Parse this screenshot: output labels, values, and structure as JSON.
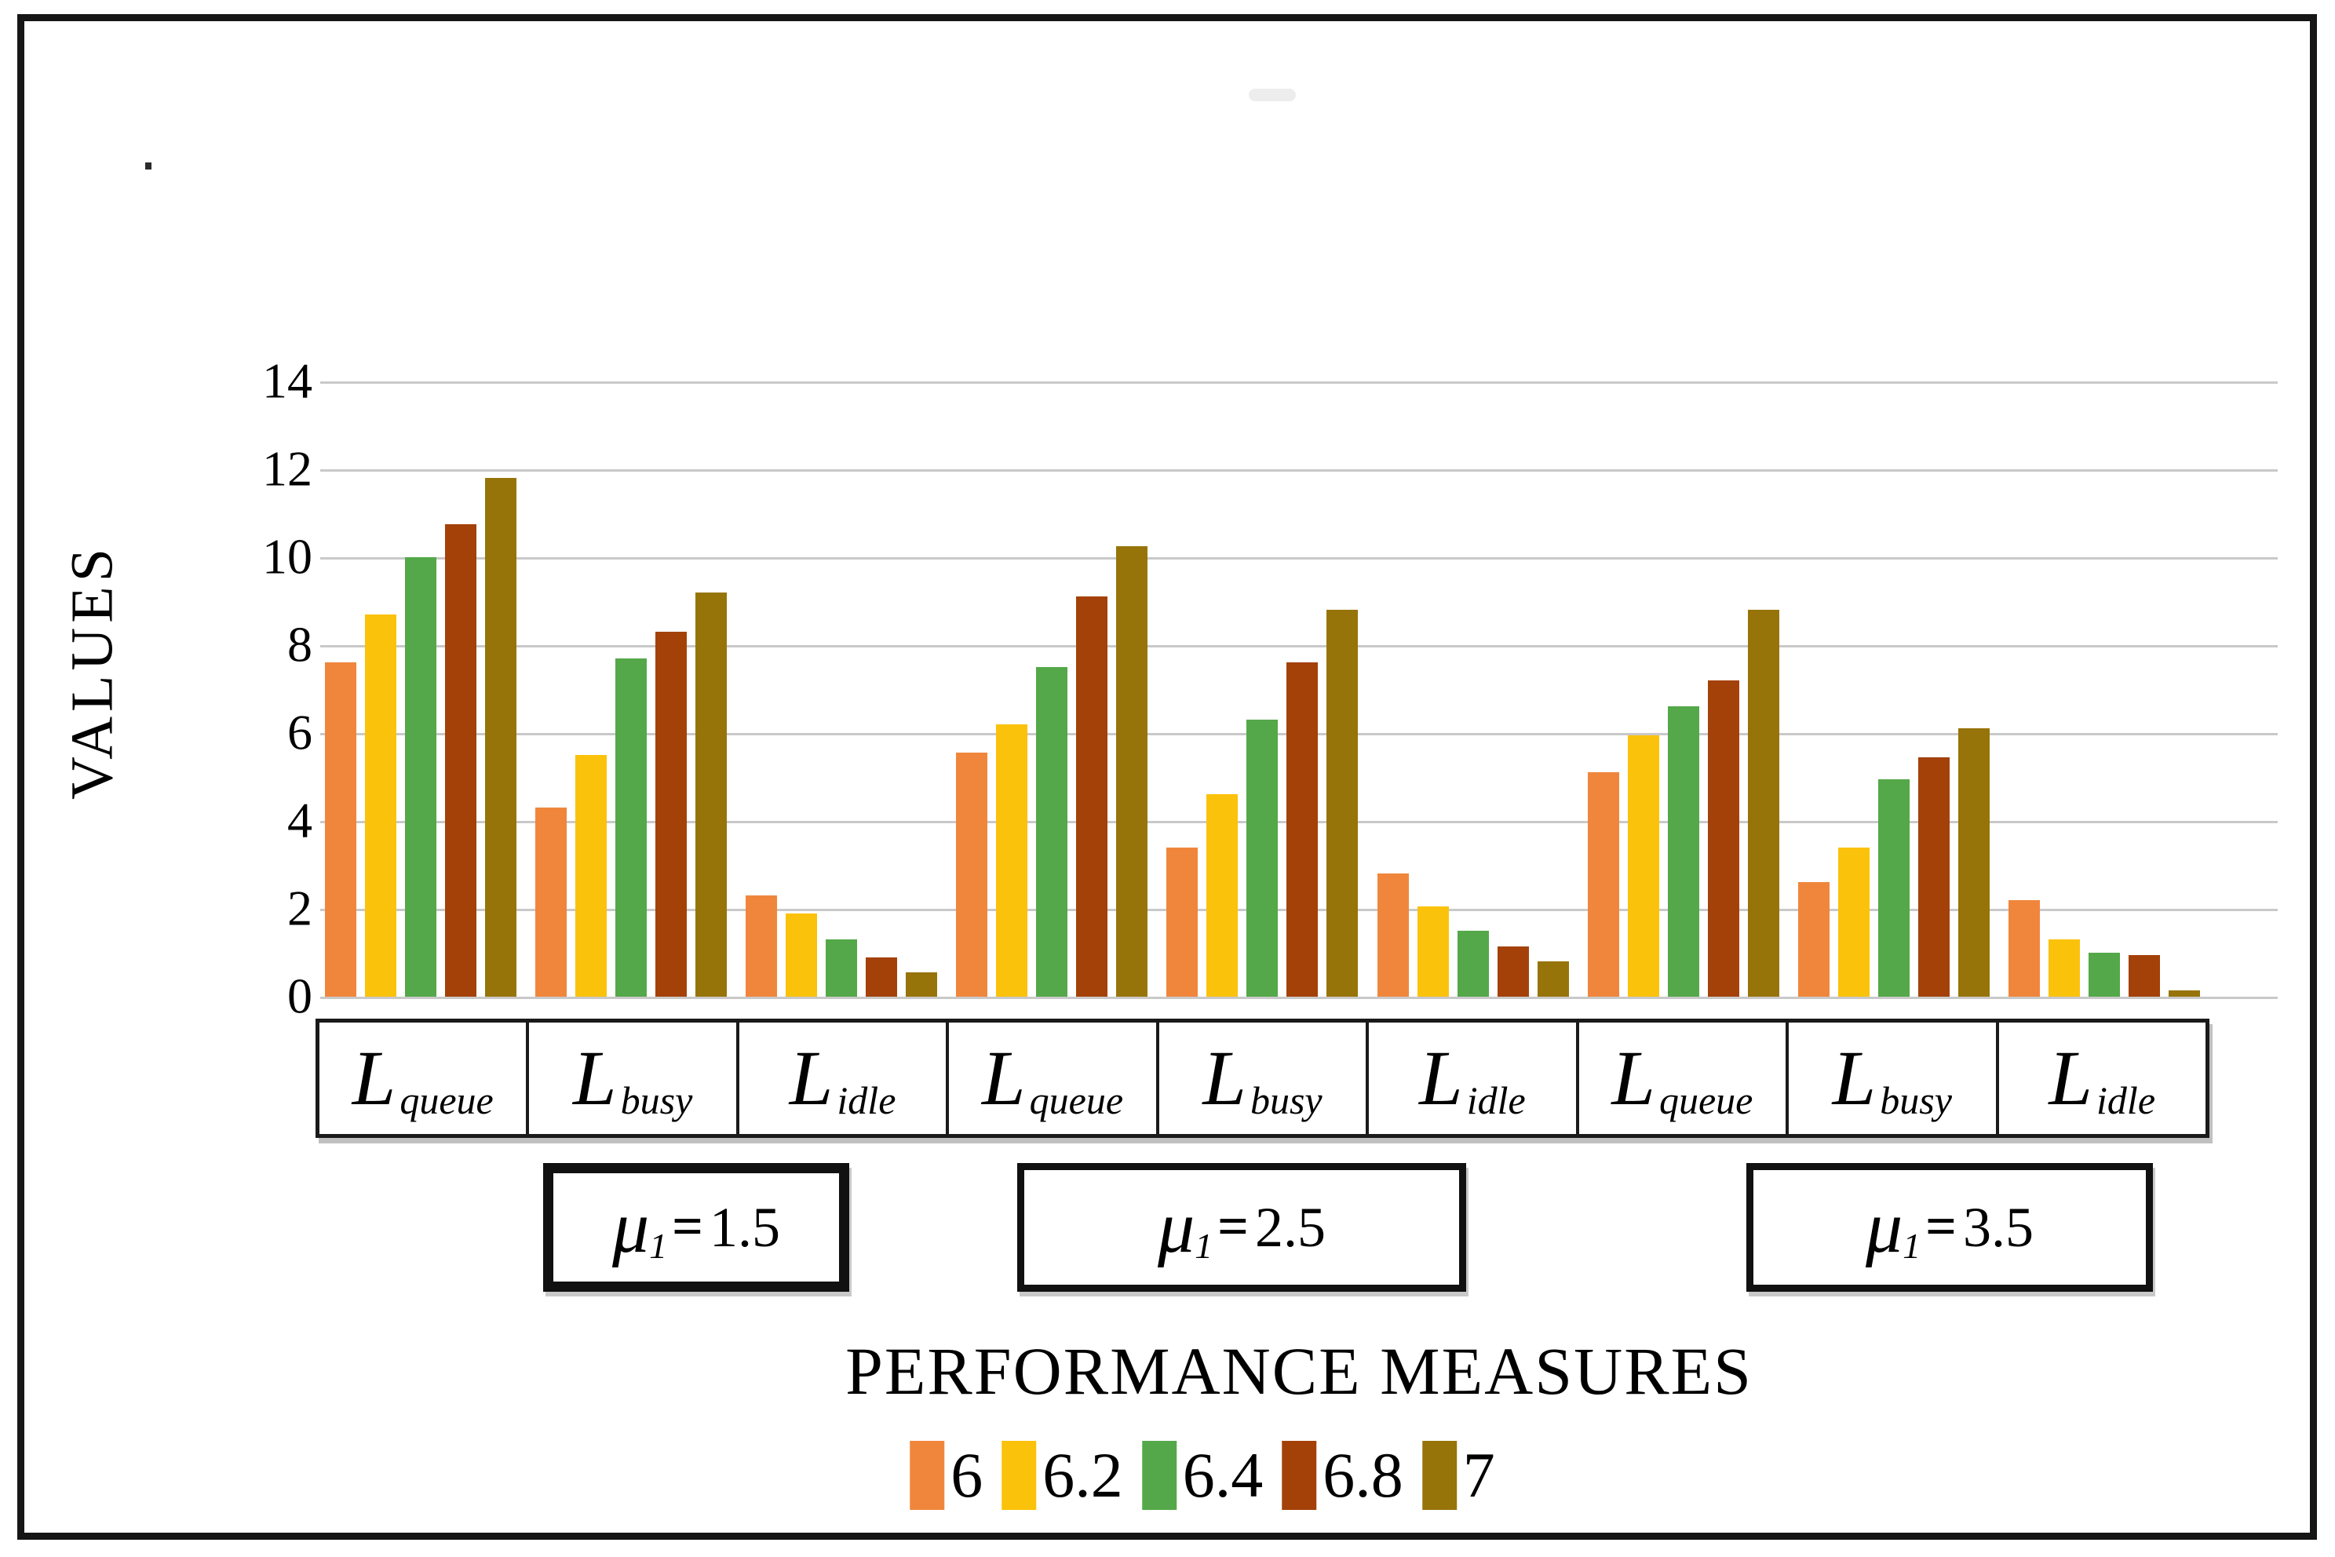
{
  "chart_data": {
    "type": "bar",
    "title": "PERFORMANCE MEASURES",
    "ylabel": "VALUES",
    "ylim": [
      0,
      14
    ],
    "yticks": [
      14,
      12,
      10,
      8,
      6,
      4,
      2,
      0
    ],
    "grid": true,
    "legend_position": "bottom",
    "series": [
      {
        "name": "6",
        "color": "#F0863C"
      },
      {
        "name": "6.2",
        "color": "#FBC20B"
      },
      {
        "name": "6.4",
        "color": "#54A849"
      },
      {
        "name": "6.8",
        "color": "#A44109"
      },
      {
        "name": "7",
        "color": "#977409"
      }
    ],
    "group_sets": [
      {
        "mu_symbol": "μ",
        "mu_sub": "1",
        "mu_eq": "=",
        "mu_value": "1.5",
        "measures": [
          {
            "label": "L",
            "sub": "queue",
            "values": [
              7.6,
              8.7,
              10.0,
              10.75,
              11.8
            ]
          },
          {
            "label": "L",
            "sub": "busy",
            "values": [
              4.3,
              5.5,
              7.7,
              8.3,
              9.2
            ]
          },
          {
            "label": "L",
            "sub": "idle",
            "values": [
              2.3,
              1.9,
              1.3,
              0.9,
              0.55
            ]
          }
        ]
      },
      {
        "mu_symbol": "μ",
        "mu_sub": "1",
        "mu_eq": "=",
        "mu_value": "2.5",
        "measures": [
          {
            "label": "L",
            "sub": "queue",
            "values": [
              5.55,
              6.2,
              7.5,
              9.1,
              10.25
            ]
          },
          {
            "label": "L",
            "sub": "busy",
            "values": [
              3.4,
              4.6,
              6.3,
              7.6,
              8.8
            ]
          },
          {
            "label": "L",
            "sub": "idle",
            "values": [
              2.8,
              2.05,
              1.5,
              1.15,
              0.8
            ]
          }
        ]
      },
      {
        "mu_symbol": "μ",
        "mu_sub": "1",
        "mu_eq": "=",
        "mu_value": "3.5",
        "measures": [
          {
            "label": "L",
            "sub": "queue",
            "values": [
              5.1,
              5.95,
              6.6,
              7.2,
              8.8
            ]
          },
          {
            "label": "L",
            "sub": "busy",
            "values": [
              2.6,
              3.4,
              4.95,
              5.45,
              6.1
            ]
          },
          {
            "label": "L",
            "sub": "idle",
            "values": [
              2.2,
              1.3,
              1.0,
              0.95,
              0.15
            ]
          }
        ]
      }
    ]
  }
}
